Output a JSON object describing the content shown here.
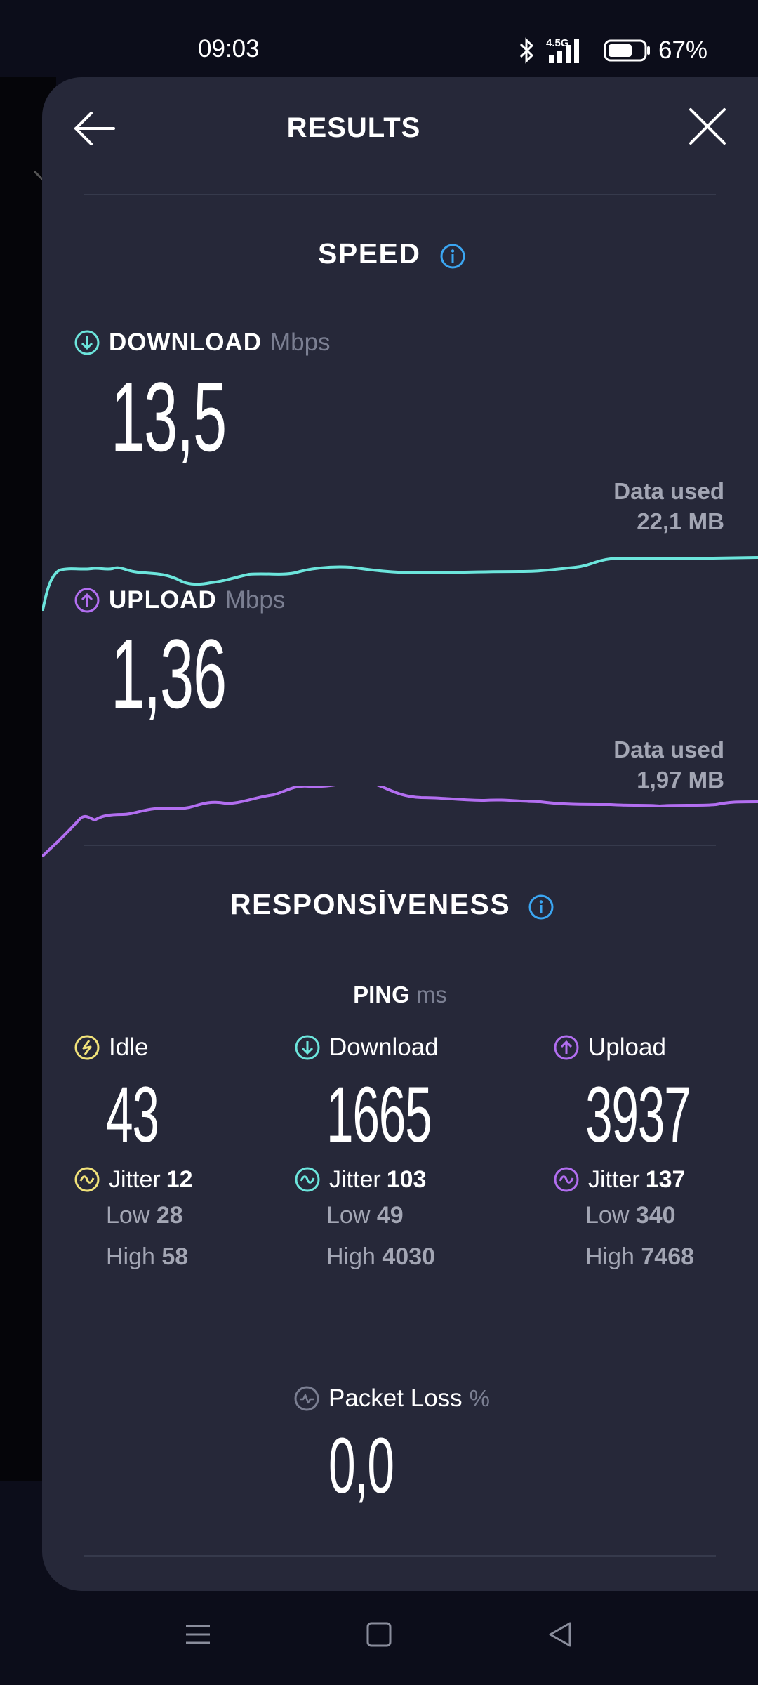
{
  "status_bar": {
    "time": "09:03",
    "network_label": "4.5G",
    "battery_percent": "67%",
    "battery_level": 0.67
  },
  "header": {
    "title": "RESULTS"
  },
  "speed": {
    "section_title": "SPEED",
    "download": {
      "label": "DOWNLOAD",
      "unit": "Mbps",
      "value": "13,5",
      "data_used_label": "Data used",
      "data_used_value": "22,1 MB",
      "color": "#6ce5dc"
    },
    "upload": {
      "label": "UPLOAD",
      "unit": "Mbps",
      "value": "1,36",
      "data_used_label": "Data used",
      "data_used_value": "1,97 MB",
      "color": "#b26ef0"
    }
  },
  "responsiveness": {
    "section_title": "RESPONSİVENESS",
    "ping_label": "PING",
    "ping_unit": "ms",
    "columns": [
      {
        "label": "Idle",
        "value": "43",
        "jitter_label": "Jitter",
        "jitter": "12",
        "low_label": "Low",
        "low": "28",
        "high_label": "High",
        "high": "58",
        "color": "#f2e37a"
      },
      {
        "label": "Download",
        "value": "1665",
        "jitter_label": "Jitter",
        "jitter": "103",
        "low_label": "Low",
        "low": "49",
        "high_label": "High",
        "high": "4030",
        "color": "#6ce5dc"
      },
      {
        "label": "Upload",
        "value": "3937",
        "jitter_label": "Jitter",
        "jitter": "137",
        "low_label": "Low",
        "low": "340",
        "high_label": "High",
        "high": "7468",
        "color": "#b26ef0"
      }
    ],
    "packet_loss": {
      "label": "Packet Loss",
      "unit": "%",
      "value": "0,0"
    }
  },
  "colors": {
    "card_bg": "#262839",
    "info_blue": "#3ba6f2",
    "muted_text": "#a3a6b4"
  }
}
